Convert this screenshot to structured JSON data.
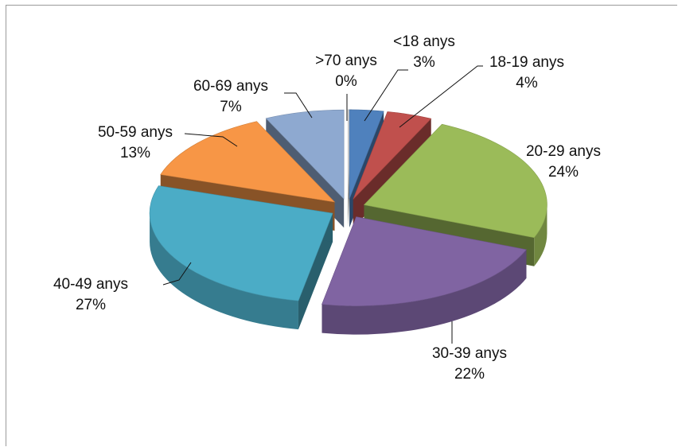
{
  "chart_data": {
    "type": "pie",
    "categories": [
      "<18 anys",
      "18-19 anys",
      "20-29 anys",
      "30-39 anys",
      "40-49 anys",
      "50-59 anys",
      "60-69 anys",
      ">70 anys"
    ],
    "values": [
      3,
      4,
      24,
      22,
      27,
      13,
      7,
      0
    ],
    "value_labels": [
      "3%",
      "4%",
      "24%",
      "22%",
      "27%",
      "13%",
      "7%",
      "0%"
    ],
    "colors": [
      "#4F81BD",
      "#C0504D",
      "#9BBB59",
      "#8064A2",
      "#4BACC6",
      "#F79646",
      "#8EA9D0",
      "#D9D9D9"
    ],
    "style": "3d-exploded",
    "title": "",
    "legend": "none"
  }
}
